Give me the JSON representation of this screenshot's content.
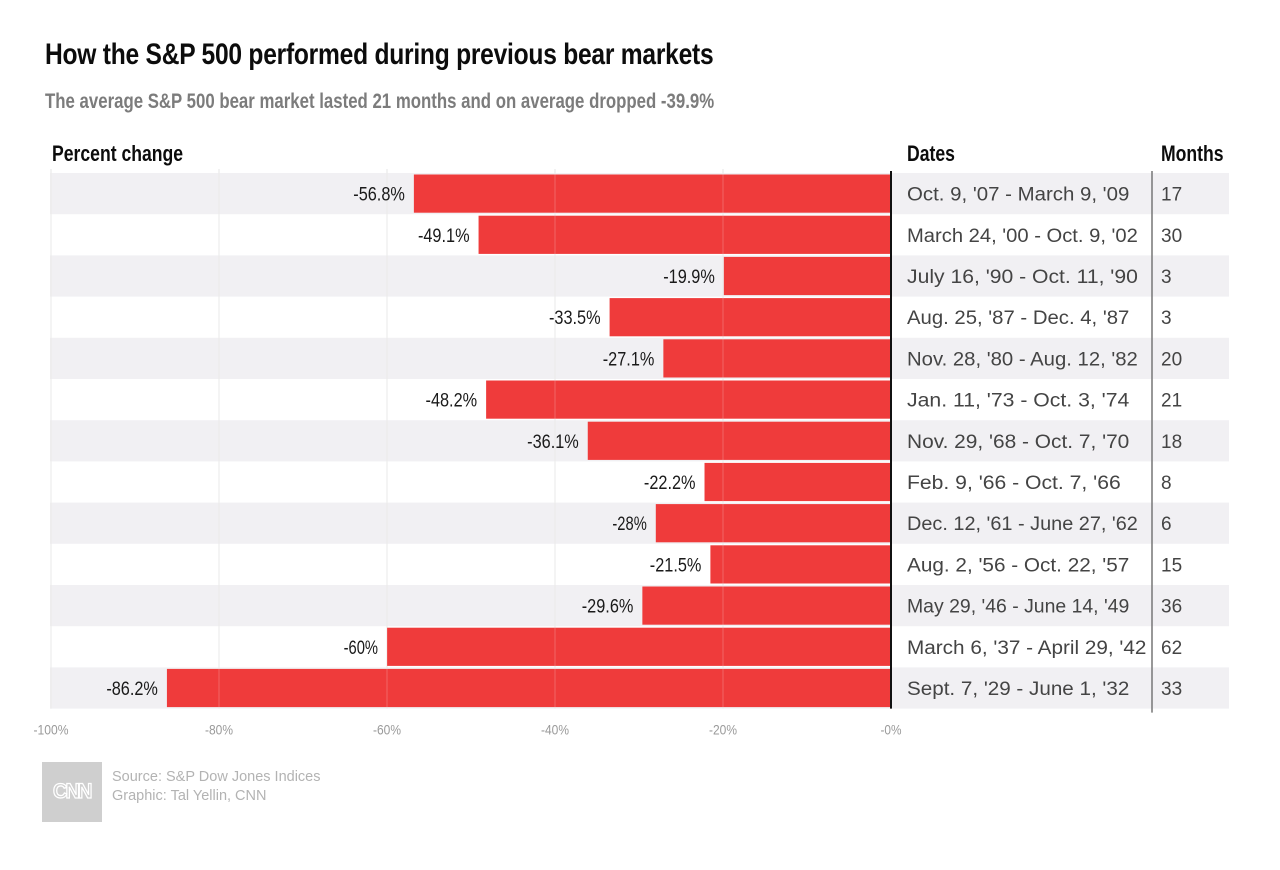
{
  "title": "How the S&P 500 performed during previous bear markets",
  "subtitle": "The average S&P 500 bear market lasted 21 months and on average dropped -39.9%",
  "columns": {
    "percent_change": "Percent change",
    "dates": "Dates",
    "months": "Months"
  },
  "footer": {
    "logo": "CNN",
    "source": "Source: S&P Dow Jones Indices",
    "graphic": "Graphic: Tal Yellin, CNN"
  },
  "colors": {
    "bar": "#EF3B3B",
    "row_band": "#F1F0F3",
    "axis": "#111111",
    "divider": "#777777",
    "gridline": "#e4e4e4"
  },
  "chart_data": {
    "type": "bar",
    "orientation": "horizontal",
    "title": "How the S&P 500 performed during previous bear markets",
    "subtitle": "The average S&P 500 bear market lasted 21 months and on average dropped -39.9%",
    "xlabel": "Percent change",
    "ylabel": "",
    "xlim": [
      -100,
      0
    ],
    "xticks": [
      -100,
      -80,
      -60,
      -40,
      -20,
      0
    ],
    "xtick_labels": [
      "-100%",
      "-80%",
      "-60%",
      "-40%",
      "-20%",
      "-0%"
    ],
    "grid": true,
    "categories": [
      "Oct. 9, '07 - March 9, '09",
      "March 24, '00 - Oct. 9, '02",
      "July 16, '90 - Oct. 11, '90",
      "Aug. 25, '87 - Dec. 4, '87",
      "Nov. 28, '80 - Aug. 12, '82",
      "Jan. 11, '73 - Oct. 3, '74",
      "Nov. 29, '68 - Oct. 7, '70",
      "Feb. 9, '66 - Oct. 7, '66",
      "Dec. 12, '61 - June 27, '62",
      "Aug. 2, '56 - Oct. 22, '57",
      "May 29, '46 - June 14, '49",
      "March 6, '37 - April 29, '42",
      "Sept. 7, '29 - June 1, '32"
    ],
    "values": [
      -56.8,
      -49.1,
      -19.9,
      -33.5,
      -27.1,
      -48.2,
      -36.1,
      -22.2,
      -28,
      -21.5,
      -29.6,
      -60,
      -86.2
    ],
    "value_labels": [
      "-56.8%",
      "-49.1%",
      "-19.9%",
      "-33.5%",
      "-27.1%",
      "-48.2%",
      "-36.1%",
      "-22.2%",
      "-28%",
      "-21.5%",
      "-29.6%",
      "-60%",
      "-86.2%"
    ],
    "months": [
      17,
      30,
      3,
      3,
      20,
      21,
      18,
      8,
      6,
      15,
      36,
      62,
      33
    ]
  }
}
